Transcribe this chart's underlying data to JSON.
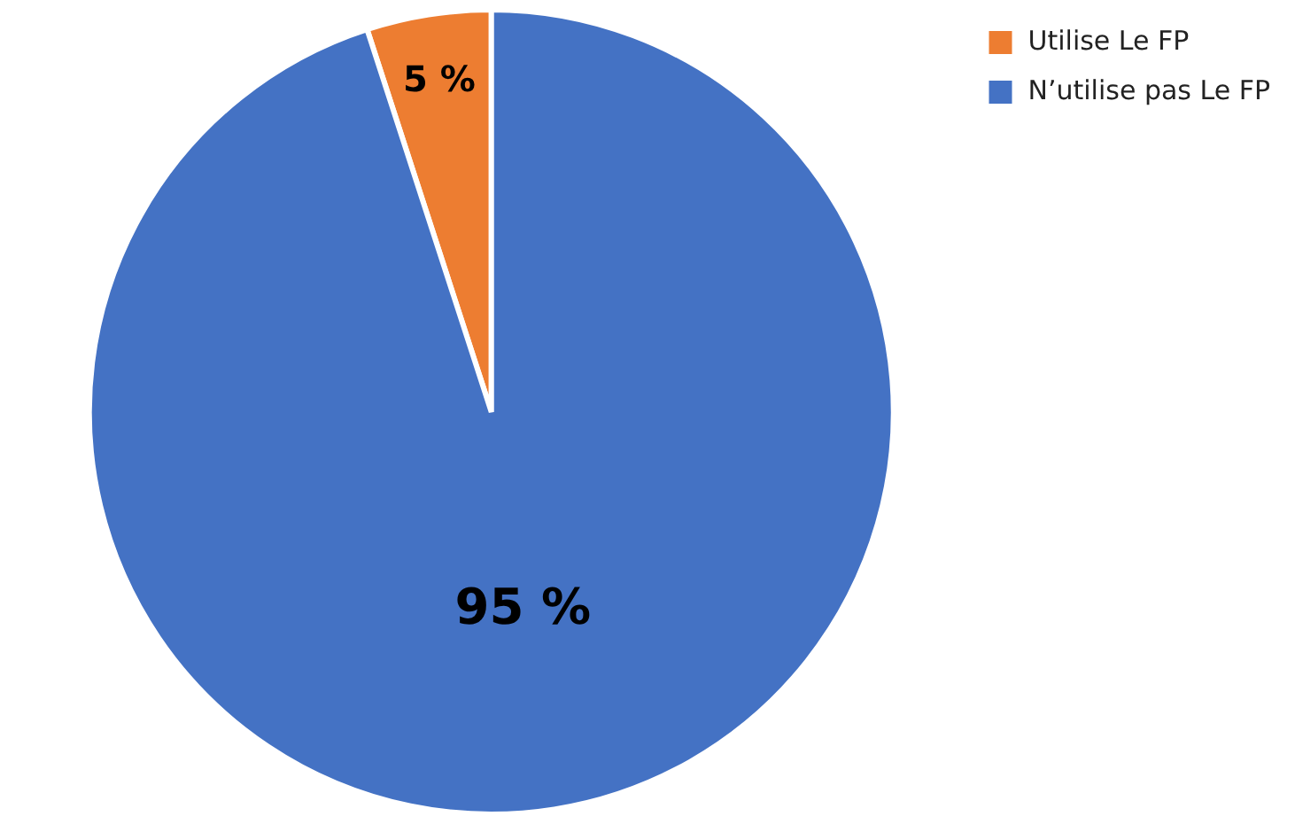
{
  "chart_data": {
    "type": "pie",
    "categories": [
      "Utilise Le FP",
      "N’utilise pas Le FP"
    ],
    "values": [
      5,
      95
    ],
    "colors": [
      "#ed7d31",
      "#4472c4"
    ],
    "value_labels": [
      "5 %",
      "95 %"
    ],
    "legend": "top right"
  }
}
